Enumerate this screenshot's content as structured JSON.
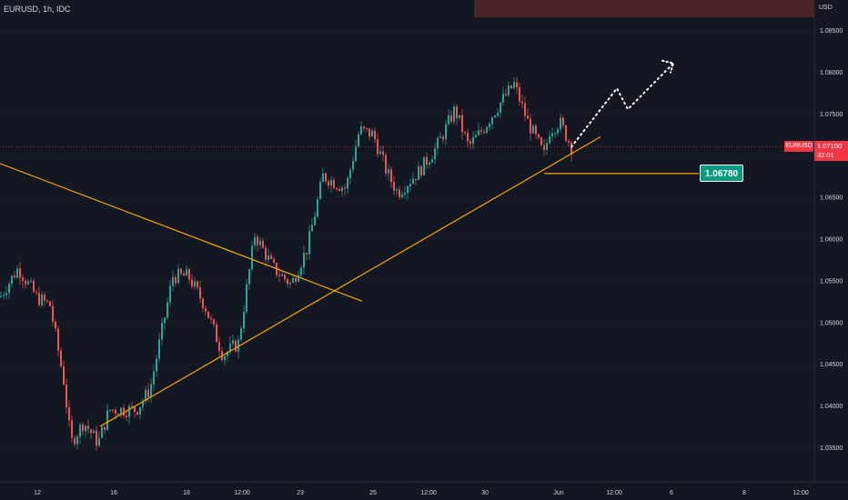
{
  "symbol": {
    "header": "EURUSD, 1h, IDC",
    "ticker": "EURUSD"
  },
  "axis": {
    "unit": "USD",
    "price_ticks": [
      "1.08500",
      "1.08000",
      "1.07500",
      "1.07000",
      "1.06500",
      "1.06000",
      "1.05500",
      "1.05000",
      "1.04500",
      "1.04000",
      "1.03500"
    ],
    "time_ticks": [
      "12",
      "16",
      "18",
      "12:00",
      "23",
      "25",
      "12:00",
      "30",
      "Jun",
      "12:00",
      "6",
      "8",
      "12:00"
    ]
  },
  "current_price": {
    "value": "1.07100",
    "countdown": "32:01",
    "color": "#f23645"
  },
  "target": {
    "value": "1.06780",
    "color": "#089981"
  },
  "colors": {
    "up": "#26a69a",
    "down": "#ef5350",
    "trendline": "#f7a600",
    "background": "#131722"
  },
  "chart_data": {
    "type": "candlestick",
    "symbol": "EURUSD",
    "timeframe": "1h",
    "yrange": [
      1.033,
      1.0885
    ],
    "price_ticks": [
      1.085,
      1.08,
      1.075,
      1.07,
      1.065,
      1.06,
      1.055,
      1.05,
      1.045,
      1.04,
      1.035
    ],
    "anchors": [
      [
        0,
        1.053
      ],
      [
        20,
        1.0565
      ],
      [
        40,
        1.053
      ],
      [
        55,
        1.052
      ],
      [
        70,
        1.043
      ],
      [
        78,
        1.0355
      ],
      [
        92,
        1.038
      ],
      [
        108,
        1.0355
      ],
      [
        120,
        1.0395
      ],
      [
        150,
        1.0395
      ],
      [
        165,
        1.042
      ],
      [
        190,
        1.0555
      ],
      [
        207,
        1.0555
      ],
      [
        225,
        1.052
      ],
      [
        245,
        1.046
      ],
      [
        262,
        1.0475
      ],
      [
        280,
        1.0605
      ],
      [
        300,
        1.0565
      ],
      [
        320,
        1.0545
      ],
      [
        338,
        1.059
      ],
      [
        355,
        1.0675
      ],
      [
        380,
        1.066
      ],
      [
        395,
        1.073
      ],
      [
        410,
        1.0725
      ],
      [
        425,
        1.068
      ],
      [
        437,
        1.0655
      ],
      [
        460,
        1.068
      ],
      [
        480,
        1.071
      ],
      [
        500,
        1.0755
      ],
      [
        515,
        1.071
      ],
      [
        530,
        1.073
      ],
      [
        548,
        1.076
      ],
      [
        565,
        1.0785
      ],
      [
        580,
        1.074
      ],
      [
        598,
        1.07
      ],
      [
        604,
        1.073
      ],
      [
        615,
        1.074
      ],
      [
        628,
        1.071
      ]
    ],
    "trendlines": [
      {
        "from": [
          0,
          1.069
        ],
        "to": [
          398,
          1.0525
        ]
      },
      {
        "from": [
          110,
          1.0375
        ],
        "to": [
          660,
          1.0722
        ]
      },
      {
        "from": [
          598,
          1.0678
        ],
        "to": [
          768,
          1.0678
        ]
      }
    ],
    "projection": [
      [
        628,
        1.071
      ],
      [
        678,
        1.078
      ],
      [
        690,
        1.0755
      ],
      [
        740,
        1.081
      ]
    ],
    "current_price": 1.071,
    "target_price": 1.0678
  }
}
